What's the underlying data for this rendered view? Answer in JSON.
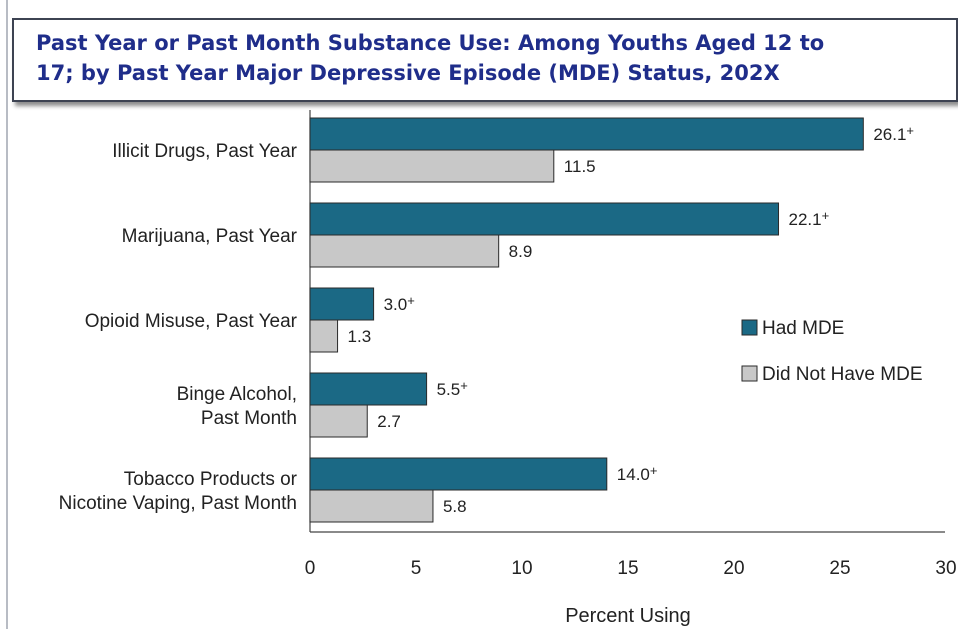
{
  "title": "Past Year or Past Month Substance Use: Among Youths Aged 12 to\n17; by Past Year Major Depressive Episode (MDE) Status, 202X",
  "chart_data": {
    "type": "bar",
    "orientation": "horizontal",
    "categories": [
      [
        "Illicit Drugs, Past Year"
      ],
      [
        "Marijuana, Past Year"
      ],
      [
        "Opioid Misuse, Past Year"
      ],
      [
        "Binge Alcohol,",
        "Past Month"
      ],
      [
        "Tobacco Products or",
        "Nicotine Vaping, Past Month"
      ]
    ],
    "series": [
      {
        "name": "Had MDE",
        "color": "#1b6985",
        "values": [
          26.1,
          22.1,
          3.0,
          5.5,
          14.0
        ],
        "labels": [
          "26.1+",
          "22.1+",
          "3.0+",
          "5.5+",
          "14.0+"
        ]
      },
      {
        "name": "Did Not Have MDE",
        "color": "#c8c8c8",
        "values": [
          11.5,
          8.9,
          1.3,
          2.7,
          5.8
        ],
        "labels": [
          "11.5",
          "8.9",
          "1.3",
          "2.7",
          "5.8"
        ]
      }
    ],
    "xlabel": "Percent Using",
    "ylabel": "",
    "xlim": [
      0,
      30
    ],
    "xticks": [
      0,
      5,
      10,
      15,
      20,
      25,
      30
    ],
    "grid": false,
    "legend_position": "right"
  }
}
